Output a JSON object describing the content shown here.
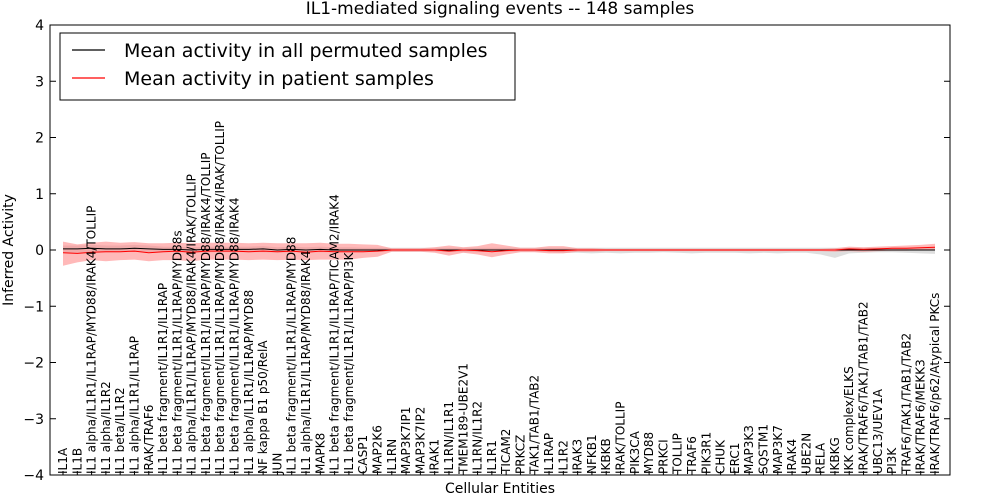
{
  "chart_data": {
    "type": "line",
    "title": "IL1-mediated signaling events -- 148 samples",
    "xlabel": "Cellular Entities",
    "ylabel": "Inferred Activity",
    "ylim": [
      -4,
      4
    ],
    "yticks": [
      "4",
      "3",
      "2",
      "1",
      "0",
      "−1",
      "−2",
      "−3",
      "−4"
    ],
    "ytick_values": [
      4,
      3,
      2,
      1,
      0,
      -1,
      -2,
      -3,
      -4
    ],
    "legend_position": "top-left",
    "legend": [
      {
        "label": "Mean activity in all permuted samples",
        "color": "#000000"
      },
      {
        "label": "Mean activity in patient samples",
        "color": "#ff0000"
      }
    ],
    "colors": {
      "permuted_band": "#c8c8c8",
      "patient_band": "#ff7f7f",
      "permuted_line": "#000000",
      "patient_line": "#ff0000"
    },
    "categories": [
      "IL1A",
      "IL1B",
      "IL1 alpha/IL1R1/IL1RAP/MYD88/IRAK4/TOLLIP",
      "IL1 alpha/IL1R2",
      "IL1 beta/IL1R2",
      "IL1 alpha/IL1R1/IL1RAP",
      "IRAK/TRAF6",
      "IL1 beta fragment/IL1R1/IL1RAP",
      "IL1 beta fragment/IL1R1/IL1RAP/MYD88s",
      "IL1 alpha/IL1R1/IL1RAP/MYD88/IRAK4/IRAK/TOLLIP",
      "IL1 beta fragment/IL1R1/IL1RAP/MYD88/IRAK4/TOLLIP",
      "IL1 beta fragment/IL1R1/IL1RAP/MYD88/IRAK4/IRAK/TOLLIP",
      "IL1 beta fragment/IL1R1/IL1RAP/MYD88/IRAK4",
      "IL1 alpha/IL1R1/IL1RAP/MYD88",
      "NF kappa B1 p50/RelA",
      "JUN",
      "IL1 beta fragment/IL1R1/IL1RAP/MYD88",
      "IL1 alpha/IL1R1/IL1RAP/MYD88/IRAK4",
      "MAPK8",
      "IL1 beta fragment/IL1R1/IL1RAP/TICAM2/IRAK4",
      "IL1 beta fragment/IL1R1/IL1RAP/PI3K",
      "CASP1",
      "MAP2K6",
      "IL1RN",
      "MAP3K7IP1",
      "MAP3K7IP2",
      "IRAK1",
      "IL1RN/IL1R1",
      "TMEM189-UBE2V1",
      "IL1RN/IL1R2",
      "IL1R1",
      "TICAM2",
      "PRKCZ",
      "TAK1/TAB1/TAB2",
      "IL1RAP",
      "IL1R2",
      "IRAK3",
      "NFKB1",
      "IKBKB",
      "IRAK/TOLLIP",
      "PIK3CA",
      "MYD88",
      "PRKCI",
      "TOLLIP",
      "TRAF6",
      "PIK3R1",
      "CHUK",
      "ERC1",
      "MAP3K3",
      "SQSTM1",
      "MAP3K7",
      "IRAK4",
      "UBE2N",
      "RELA",
      "IKBKG",
      "IKK complex/ELKS",
      "IRAK/TRAF6/TAK1/TAB1/TAB2",
      "UBC13/UEV1A",
      "PI3K",
      "TRAF6/TAK1/TAB1/TAB2",
      "IRAK/TRAF6/MEKK3",
      "IRAK/TRAF6/p62/Atypical PKCs"
    ],
    "series": [
      {
        "name": "Mean activity in all permuted samples",
        "values": [
          0.02,
          0.02,
          0.03,
          0.02,
          0.02,
          0.03,
          0.02,
          0.01,
          0.01,
          0.0,
          0.01,
          0.01,
          0.01,
          0.01,
          0.02,
          0.0,
          0.01,
          0.0,
          0.01,
          0.0,
          0.0,
          0.0,
          0.0,
          0.0,
          0.0,
          0.0,
          0.0,
          0.0,
          0.0,
          0.0,
          0.0,
          0.0,
          0.0,
          0.0,
          0.0,
          0.0,
          0.0,
          0.0,
          0.0,
          0.0,
          0.0,
          0.0,
          0.0,
          0.0,
          0.0,
          0.0,
          0.0,
          0.0,
          0.0,
          0.0,
          0.0,
          0.0,
          0.0,
          0.0,
          0.0,
          0.0,
          0.0,
          0.0,
          0.0,
          0.0,
          0.0,
          0.0
        ],
        "lower": [
          -0.05,
          -0.05,
          -0.03,
          -0.04,
          -0.04,
          -0.03,
          -0.04,
          -0.04,
          -0.04,
          -0.05,
          -0.04,
          -0.04,
          -0.04,
          -0.04,
          -0.04,
          -0.05,
          -0.04,
          -0.04,
          -0.04,
          -0.04,
          -0.04,
          -0.03,
          -0.03,
          -0.03,
          -0.03,
          -0.03,
          -0.03,
          -0.03,
          -0.04,
          -0.04,
          -0.03,
          -0.03,
          -0.03,
          -0.03,
          -0.04,
          -0.05,
          -0.05,
          -0.06,
          -0.05,
          -0.06,
          -0.05,
          -0.05,
          -0.04,
          -0.05,
          -0.06,
          -0.05,
          -0.05,
          -0.05,
          -0.06,
          -0.05,
          -0.06,
          -0.05,
          -0.05,
          -0.08,
          -0.14,
          -0.06,
          -0.05,
          -0.04,
          -0.04,
          -0.05,
          -0.06,
          -0.07
        ],
        "upper": [
          0.08,
          0.08,
          0.09,
          0.08,
          0.08,
          0.09,
          0.08,
          0.06,
          0.06,
          0.05,
          0.06,
          0.06,
          0.06,
          0.06,
          0.07,
          0.05,
          0.06,
          0.05,
          0.06,
          0.05,
          0.05,
          0.04,
          0.04,
          0.04,
          0.04,
          0.04,
          0.04,
          0.04,
          0.04,
          0.04,
          0.04,
          0.04,
          0.04,
          0.04,
          0.04,
          0.04,
          0.04,
          0.04,
          0.04,
          0.04,
          0.04,
          0.04,
          0.04,
          0.04,
          0.04,
          0.04,
          0.04,
          0.04,
          0.04,
          0.04,
          0.04,
          0.04,
          0.04,
          0.04,
          0.04,
          0.04,
          0.04,
          0.04,
          0.04,
          0.04,
          0.04,
          0.04
        ]
      },
      {
        "name": "Mean activity in patient samples",
        "values": [
          -0.05,
          -0.06,
          -0.04,
          -0.03,
          -0.03,
          -0.02,
          -0.05,
          -0.03,
          -0.02,
          -0.04,
          -0.02,
          -0.02,
          -0.02,
          -0.03,
          -0.02,
          -0.03,
          -0.02,
          -0.04,
          -0.02,
          -0.03,
          -0.03,
          -0.03,
          -0.02,
          0.0,
          0.0,
          0.0,
          0.0,
          -0.02,
          0.0,
          -0.01,
          -0.03,
          -0.01,
          0.0,
          0.0,
          -0.01,
          -0.01,
          0.0,
          0.0,
          0.0,
          0.0,
          0.0,
          0.0,
          0.0,
          0.0,
          0.0,
          0.0,
          0.0,
          0.0,
          0.0,
          0.0,
          0.0,
          0.0,
          0.0,
          0.0,
          0.0,
          0.02,
          0.01,
          0.02,
          0.03,
          0.03,
          0.04,
          0.05
        ],
        "lower": [
          -0.28,
          -0.22,
          -0.18,
          -0.2,
          -0.18,
          -0.17,
          -0.2,
          -0.18,
          -0.18,
          -0.2,
          -0.17,
          -0.17,
          -0.17,
          -0.18,
          -0.17,
          -0.18,
          -0.17,
          -0.18,
          -0.17,
          -0.17,
          -0.17,
          -0.14,
          -0.12,
          -0.03,
          -0.03,
          -0.03,
          -0.05,
          -0.1,
          -0.05,
          -0.08,
          -0.13,
          -0.08,
          -0.04,
          -0.04,
          -0.06,
          -0.06,
          -0.03,
          -0.03,
          -0.02,
          -0.02,
          -0.02,
          -0.02,
          -0.02,
          -0.02,
          -0.02,
          -0.02,
          -0.02,
          -0.02,
          -0.02,
          -0.02,
          -0.02,
          -0.02,
          -0.02,
          -0.02,
          -0.03,
          -0.02,
          -0.03,
          -0.02,
          -0.01,
          -0.01,
          0.0,
          0.0
        ],
        "upper": [
          0.15,
          0.1,
          0.13,
          0.15,
          0.13,
          0.14,
          0.12,
          0.12,
          0.13,
          0.12,
          0.13,
          0.13,
          0.13,
          0.12,
          0.13,
          0.12,
          0.12,
          0.12,
          0.13,
          0.11,
          0.11,
          0.1,
          0.09,
          0.03,
          0.03,
          0.03,
          0.05,
          0.08,
          0.05,
          0.07,
          0.12,
          0.08,
          0.04,
          0.04,
          0.07,
          0.07,
          0.03,
          0.03,
          0.02,
          0.02,
          0.02,
          0.02,
          0.02,
          0.02,
          0.02,
          0.02,
          0.02,
          0.02,
          0.02,
          0.02,
          0.02,
          0.02,
          0.02,
          0.02,
          0.03,
          0.06,
          0.05,
          0.06,
          0.07,
          0.08,
          0.09,
          0.11
        ]
      }
    ]
  }
}
